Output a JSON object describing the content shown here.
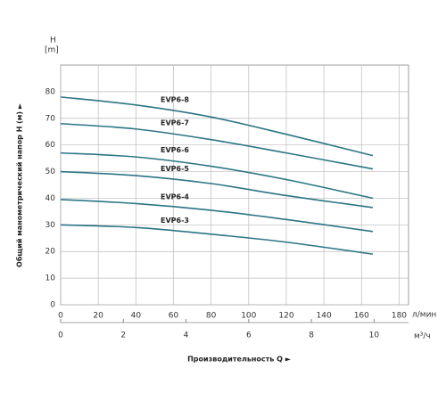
{
  "chart_data": {
    "type": "line",
    "y_unit": "H",
    "y_unit2": "[m]",
    "ylabel": "Общий манометрический напор H (м)  ►",
    "xlabel": "Производительность Q  ►",
    "x_unit": "л/мин",
    "x2_unit": "м³/ч",
    "x": [
      0,
      40,
      80,
      120,
      166
    ],
    "xlim": [
      0,
      185
    ],
    "xticks": [
      0,
      20,
      40,
      60,
      80,
      100,
      120,
      140,
      160,
      180
    ],
    "x2lim": [
      0,
      11.1
    ],
    "x2ticks": [
      0,
      2,
      4,
      6,
      8,
      10
    ],
    "ylim": [
      0,
      90
    ],
    "yticks": [
      0,
      10,
      20,
      30,
      40,
      50,
      60,
      70,
      80
    ],
    "grid": true,
    "series": [
      {
        "name": "EVP6-8",
        "color": "#2b7584",
        "values": [
          78,
          75,
          70.5,
          64,
          56
        ]
      },
      {
        "name": "EVP6-7",
        "color": "#2b7584",
        "values": [
          68,
          66,
          62,
          57,
          51
        ]
      },
      {
        "name": "EVP6-6",
        "color": "#2b7584",
        "values": [
          57,
          55.5,
          52,
          47,
          40
        ]
      },
      {
        "name": "EVP6-5",
        "color": "#2b7584",
        "values": [
          50,
          48.5,
          45.5,
          41,
          36.5
        ]
      },
      {
        "name": "EVP6-4",
        "color": "#2b7584",
        "values": [
          39.5,
          38,
          35.5,
          32,
          27.5
        ]
      },
      {
        "name": "EVP6-3",
        "color": "#2b7584",
        "values": [
          30,
          29,
          26.5,
          23.5,
          19
        ]
      }
    ]
  }
}
